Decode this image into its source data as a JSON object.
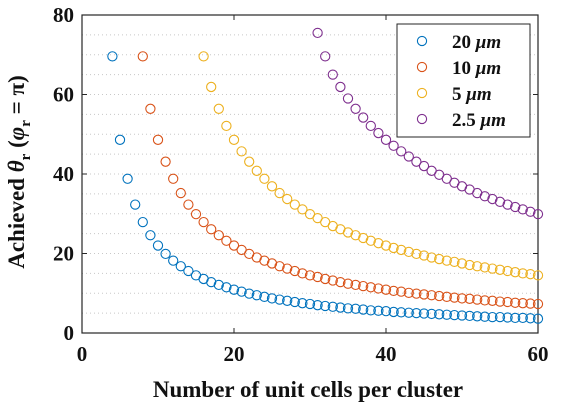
{
  "chart_data": {
    "type": "scatter",
    "title": "",
    "xlabel": "Number of unit cells per cluster",
    "ylabel": "Achieved θ_r (φ_r = π)",
    "ylabel_parts": {
      "prefix": "Achieved ",
      "theta": "θ",
      "theta_sub": "r",
      "open": " (",
      "phi": "φ",
      "phi_sub": "r",
      "rest": " = π)"
    },
    "xlim": [
      0,
      60
    ],
    "ylim": [
      0,
      80
    ],
    "xticks": [
      0,
      20,
      40,
      60
    ],
    "yticks": [
      0,
      20,
      40,
      60,
      80
    ],
    "xtick_labels": [
      "0",
      "20",
      "40",
      "60"
    ],
    "ytick_labels": [
      "0",
      "20",
      "40",
      "60",
      "80"
    ],
    "grid": "horizontal dotted",
    "legend_position": "top-right",
    "marker": "open circle",
    "series": [
      {
        "name": "20 μm",
        "label_number": "20",
        "label_unit": "μm",
        "color": "#0072BD",
        "x": [
          4,
          5,
          6,
          7,
          8,
          9,
          10,
          11,
          12,
          13,
          14,
          15,
          16,
          17,
          18,
          19,
          20,
          21,
          22,
          23,
          24,
          25,
          26,
          27,
          28,
          29,
          30,
          31,
          32,
          33,
          34,
          35,
          36,
          37,
          38,
          39,
          40,
          41,
          42,
          43,
          44,
          45,
          46,
          47,
          48,
          49,
          50,
          51,
          52,
          53,
          54,
          55,
          56,
          57,
          58,
          59,
          60
        ],
        "y": [
          69.6,
          48.6,
          38.8,
          32.3,
          27.9,
          24.6,
          22.0,
          19.9,
          18.2,
          16.8,
          15.6,
          14.5,
          13.6,
          12.8,
          12.1,
          11.5,
          10.9,
          10.4,
          9.9,
          9.5,
          9.1,
          8.7,
          8.4,
          8.1,
          7.8,
          7.5,
          7.3,
          7.0,
          6.8,
          6.6,
          6.4,
          6.2,
          6.1,
          5.9,
          5.7,
          5.6,
          5.5,
          5.3,
          5.2,
          5.1,
          5.0,
          4.9,
          4.8,
          4.7,
          4.6,
          4.5,
          4.4,
          4.3,
          4.2,
          4.1,
          4.0,
          4.0,
          3.9,
          3.8,
          3.8,
          3.7,
          3.6
        ]
      },
      {
        "name": "10 μm",
        "label_number": "10",
        "label_unit": "μm",
        "color": "#D95319",
        "x": [
          8,
          9,
          10,
          11,
          12,
          13,
          14,
          15,
          16,
          17,
          18,
          19,
          20,
          21,
          22,
          23,
          24,
          25,
          26,
          27,
          28,
          29,
          30,
          31,
          32,
          33,
          34,
          35,
          36,
          37,
          38,
          39,
          40,
          41,
          42,
          43,
          44,
          45,
          46,
          47,
          48,
          49,
          50,
          51,
          52,
          53,
          54,
          55,
          56,
          57,
          58,
          59,
          60
        ],
        "y": [
          69.6,
          56.4,
          48.6,
          43.1,
          38.8,
          35.2,
          32.3,
          29.9,
          27.9,
          26.1,
          24.6,
          23.2,
          22.0,
          20.9,
          19.9,
          19.0,
          18.2,
          17.5,
          16.8,
          16.2,
          15.6,
          15.0,
          14.5,
          14.1,
          13.6,
          13.2,
          12.8,
          12.4,
          12.1,
          11.8,
          11.5,
          11.2,
          10.9,
          10.6,
          10.4,
          10.1,
          9.9,
          9.7,
          9.5,
          9.3,
          9.1,
          8.9,
          8.7,
          8.6,
          8.4,
          8.2,
          8.1,
          7.9,
          7.8,
          7.6,
          7.5,
          7.4,
          7.3
        ]
      },
      {
        "name": "5 μm",
        "label_number": "5",
        "label_unit": "μm",
        "color": "#EDB120",
        "x": [
          16,
          17,
          18,
          19,
          20,
          21,
          22,
          23,
          24,
          25,
          26,
          27,
          28,
          29,
          30,
          31,
          32,
          33,
          34,
          35,
          36,
          37,
          38,
          39,
          40,
          41,
          42,
          43,
          44,
          45,
          46,
          47,
          48,
          49,
          50,
          51,
          52,
          53,
          54,
          55,
          56,
          57,
          58,
          59,
          60
        ],
        "y": [
          69.6,
          61.9,
          56.4,
          52.1,
          48.6,
          45.7,
          43.1,
          40.8,
          38.8,
          36.9,
          35.2,
          33.7,
          32.3,
          31.1,
          29.9,
          28.9,
          27.9,
          26.9,
          26.1,
          25.3,
          24.6,
          23.9,
          23.2,
          22.6,
          22.0,
          21.4,
          20.9,
          20.4,
          19.9,
          19.5,
          19.0,
          18.6,
          18.2,
          17.9,
          17.5,
          17.1,
          16.8,
          16.5,
          16.2,
          15.9,
          15.6,
          15.3,
          15.0,
          14.8,
          14.5
        ]
      },
      {
        "name": "2.5 μm",
        "label_number": "2.5",
        "label_unit": "μm",
        "color": "#7E2F8E",
        "x": [
          31,
          32,
          33,
          34,
          35,
          36,
          37,
          38,
          39,
          40,
          41,
          42,
          43,
          44,
          45,
          46,
          47,
          48,
          49,
          50,
          51,
          52,
          53,
          54,
          55,
          56,
          57,
          58,
          59,
          60
        ],
        "y": [
          75.5,
          69.6,
          65.0,
          61.9,
          59.0,
          56.4,
          54.2,
          52.1,
          50.3,
          48.6,
          47.1,
          45.7,
          44.4,
          43.1,
          42.0,
          40.8,
          39.8,
          38.8,
          37.8,
          36.9,
          36.1,
          35.2,
          34.4,
          33.7,
          33.0,
          32.3,
          31.7,
          31.1,
          30.5,
          29.9
        ]
      }
    ]
  }
}
